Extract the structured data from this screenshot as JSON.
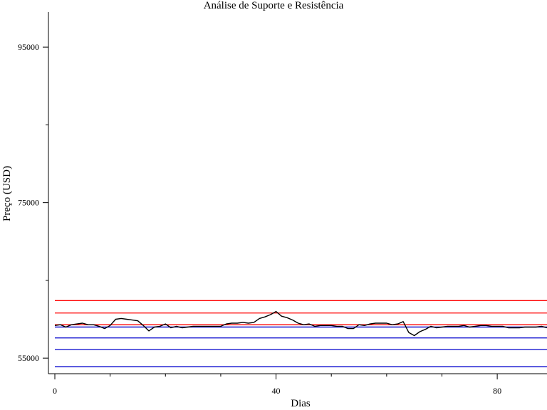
{
  "chart_data": {
    "type": "line",
    "title": "Análise de Suporte e Resistência",
    "xlabel": "Dias",
    "ylabel": "Preço (USD)",
    "xlim": [
      0,
      89
    ],
    "ylim": [
      53000,
      99500
    ],
    "x_ticks": [
      0,
      40,
      80
    ],
    "x_tick_labels": [
      "0",
      "40",
      "80"
    ],
    "x_minor_ticks": [
      10,
      20,
      30,
      50,
      60,
      70
    ],
    "y_ticks": [
      55000,
      75000,
      95000
    ],
    "y_tick_labels": [
      "55000",
      "75000",
      "95000"
    ],
    "y_minor_ticks": [
      65000,
      85000
    ],
    "grid": false,
    "legend": "none",
    "series": [
      {
        "color": "#000000",
        "x": [
          0,
          1,
          2,
          3,
          4,
          5,
          6,
          7,
          8,
          9,
          10,
          11,
          12,
          13,
          14,
          15,
          16,
          17,
          18,
          19,
          20,
          21,
          22,
          23,
          24,
          25,
          26,
          27,
          28,
          29,
          30,
          31,
          32,
          33,
          34,
          35,
          36,
          37,
          38,
          39,
          40,
          41,
          42,
          43,
          44,
          45,
          46,
          47,
          48,
          49,
          50,
          51,
          52,
          53,
          54,
          55,
          56,
          57,
          58,
          59,
          60,
          61,
          62,
          63,
          64,
          65,
          66,
          67,
          68,
          69,
          70,
          71,
          72,
          73,
          74,
          75,
          76,
          77,
          78,
          79,
          80,
          81,
          82,
          83,
          84,
          85,
          86,
          87,
          88,
          89
        ],
        "values": [
          59200,
          59300,
          59000,
          59300,
          59400,
          59500,
          59300,
          59300,
          59100,
          58800,
          59200,
          60000,
          60100,
          60000,
          59900,
          59800,
          59200,
          58500,
          59000,
          59100,
          59400,
          58900,
          59100,
          58900,
          59000,
          59100,
          59100,
          59100,
          59100,
          59100,
          59100,
          59400,
          59500,
          59500,
          59600,
          59500,
          59600,
          60100,
          60300,
          60600,
          61000,
          60400,
          60200,
          59900,
          59500,
          59300,
          59400,
          59100,
          59200,
          59200,
          59200,
          59100,
          59100,
          58800,
          58800,
          59300,
          59200,
          59400,
          59500,
          59500,
          59500,
          59300,
          59400,
          59700,
          58300,
          57900,
          58400,
          58700,
          59100,
          58900,
          59000,
          59100,
          59100,
          59100,
          59200,
          59000,
          59100,
          59200,
          59200,
          59100,
          59100,
          59100,
          58900,
          58900,
          58900,
          59000,
          59000,
          59000,
          59100,
          58900
        ]
      }
    ],
    "resistance_levels": [
      62400,
      60800,
      59300
    ],
    "support_levels": [
      59000,
      57600,
      56100,
      53900
    ],
    "resistance_color": "#ff0000",
    "support_color": "#0000cc"
  }
}
